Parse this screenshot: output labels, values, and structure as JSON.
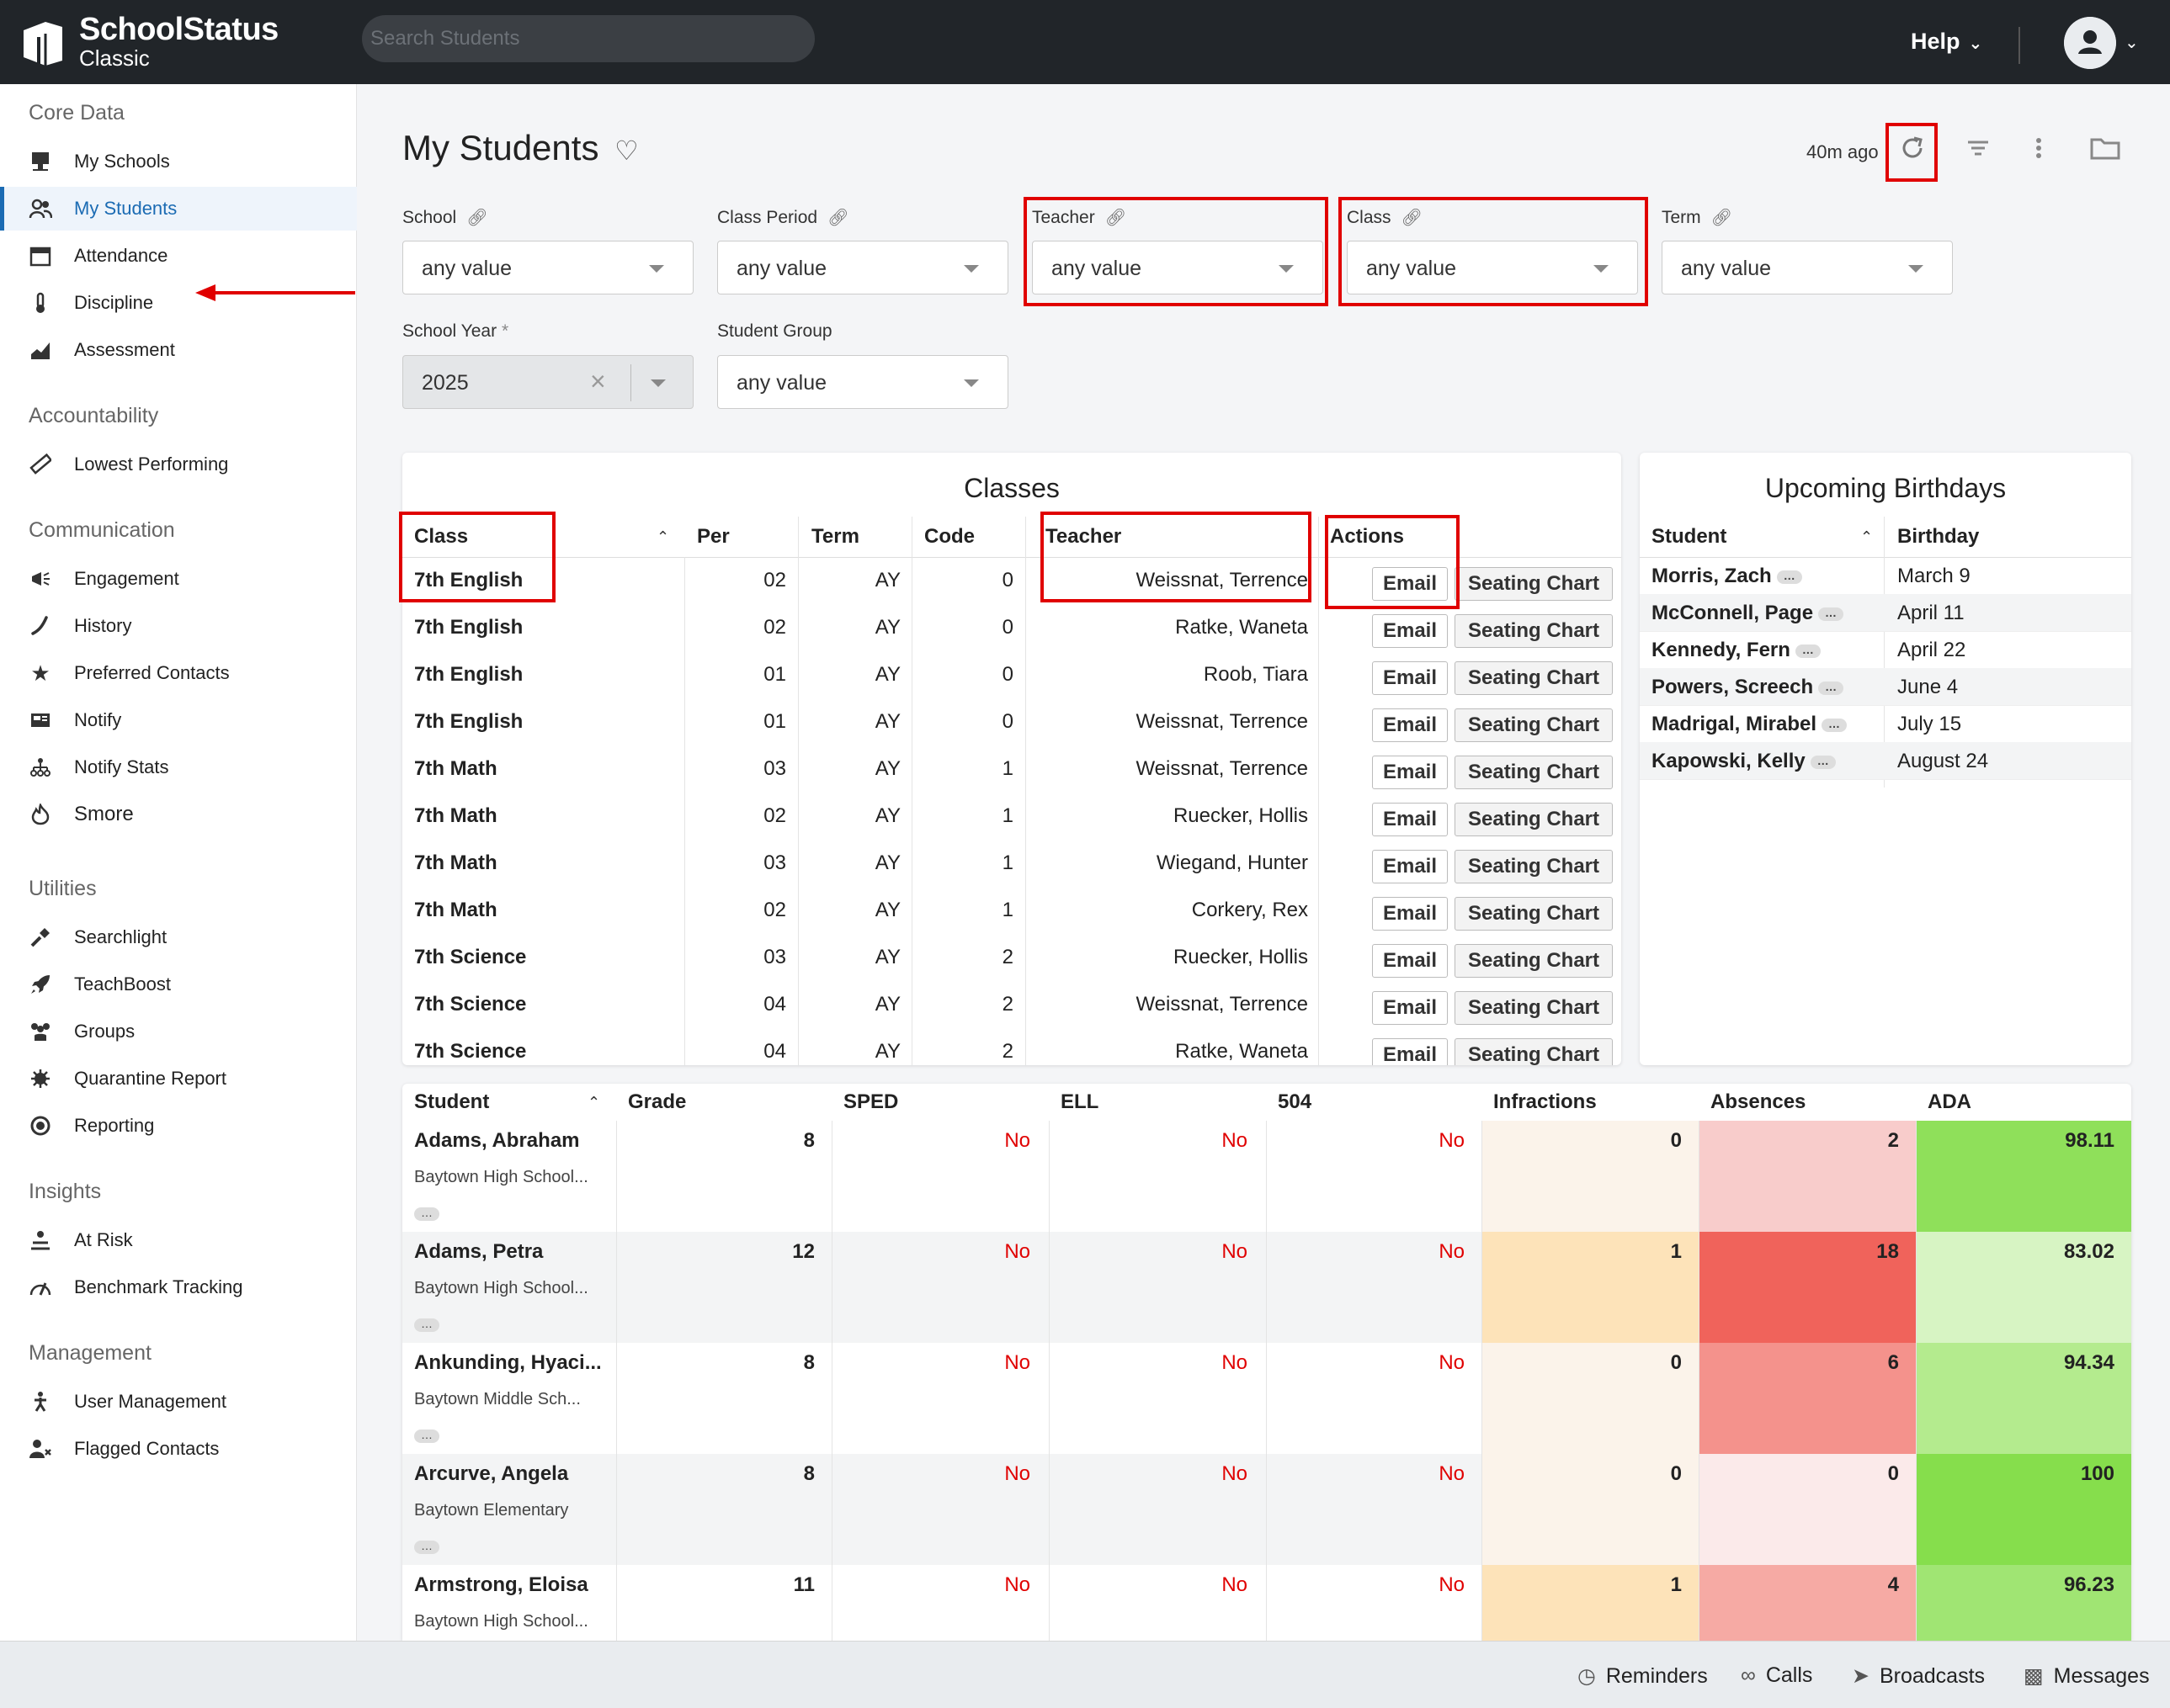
{
  "app": {
    "brand": "SchoolStatus",
    "brand_sub": "Classic",
    "search_placeholder": "Search Students",
    "help_label": "Help"
  },
  "sidebar": {
    "sections": [
      {
        "title": "Core Data",
        "items": [
          "My Schools",
          "My Students",
          "Attendance",
          "Discipline",
          "Assessment"
        ]
      },
      {
        "title": "Accountability",
        "items": [
          "Lowest Performing"
        ]
      },
      {
        "title": "Communication",
        "items": [
          "Engagement",
          "History",
          "Preferred Contacts",
          "Notify",
          "Notify Stats",
          "Smore"
        ]
      },
      {
        "title": "Utilities",
        "items": [
          "Searchlight",
          "TeachBoost",
          "Groups",
          "Quarantine Report",
          "Reporting"
        ]
      },
      {
        "title": "Insights",
        "items": [
          "At Risk",
          "Benchmark Tracking"
        ]
      },
      {
        "title": "Management",
        "items": [
          "User Management",
          "Flagged Contacts"
        ]
      }
    ],
    "active_item": "My Students"
  },
  "page": {
    "title": "My Students",
    "updated": "40m ago"
  },
  "filters": {
    "school": {
      "label": "School",
      "value": "any value"
    },
    "class_period": {
      "label": "Class Period",
      "value": "any value"
    },
    "teacher": {
      "label": "Teacher",
      "value": "any value"
    },
    "class": {
      "label": "Class",
      "value": "any value"
    },
    "term": {
      "label": "Term",
      "value": "any value"
    },
    "school_year": {
      "label": "School Year",
      "required": "*",
      "value": "2025"
    },
    "student_group": {
      "label": "Student Group",
      "value": "any value"
    }
  },
  "classes": {
    "title": "Classes",
    "headers": {
      "class": "Class",
      "per": "Per",
      "term": "Term",
      "code": "Code",
      "teacher": "Teacher",
      "actions": "Actions"
    },
    "email_label": "Email",
    "seating_label": "Seating Chart",
    "rows": [
      {
        "class": "7th English",
        "per": "02",
        "term": "AY",
        "code": "0",
        "teacher": "Weissnat, Terrence"
      },
      {
        "class": "7th English",
        "per": "02",
        "term": "AY",
        "code": "0",
        "teacher": "Ratke, Waneta"
      },
      {
        "class": "7th English",
        "per": "01",
        "term": "AY",
        "code": "0",
        "teacher": "Roob, Tiara"
      },
      {
        "class": "7th English",
        "per": "01",
        "term": "AY",
        "code": "0",
        "teacher": "Weissnat, Terrence"
      },
      {
        "class": "7th Math",
        "per": "03",
        "term": "AY",
        "code": "1",
        "teacher": "Weissnat, Terrence"
      },
      {
        "class": "7th Math",
        "per": "02",
        "term": "AY",
        "code": "1",
        "teacher": "Ruecker, Hollis"
      },
      {
        "class": "7th Math",
        "per": "03",
        "term": "AY",
        "code": "1",
        "teacher": "Wiegand, Hunter"
      },
      {
        "class": "7th Math",
        "per": "02",
        "term": "AY",
        "code": "1",
        "teacher": "Corkery, Rex"
      },
      {
        "class": "7th Science",
        "per": "03",
        "term": "AY",
        "code": "2",
        "teacher": "Ruecker, Hollis"
      },
      {
        "class": "7th Science",
        "per": "04",
        "term": "AY",
        "code": "2",
        "teacher": "Weissnat, Terrence"
      },
      {
        "class": "7th Science",
        "per": "04",
        "term": "AY",
        "code": "2",
        "teacher": "Ratke, Waneta"
      }
    ]
  },
  "birthdays": {
    "title": "Upcoming Birthdays",
    "headers": {
      "student": "Student",
      "birthday": "Birthday"
    },
    "rows": [
      {
        "student": "Morris, Zach",
        "birthday": "March 9"
      },
      {
        "student": "McConnell, Page",
        "birthday": "April 11"
      },
      {
        "student": "Kennedy, Fern",
        "birthday": "April 22"
      },
      {
        "student": "Powers, Screech",
        "birthday": "June 4"
      },
      {
        "student": "Madrigal, Mirabel",
        "birthday": "July 15"
      },
      {
        "student": "Kapowski, Kelly",
        "birthday": "August 24"
      }
    ]
  },
  "students": {
    "headers": {
      "student": "Student",
      "grade": "Grade",
      "sped": "SPED",
      "ell": "ELL",
      "s504": "504",
      "infractions": "Infractions",
      "absences": "Absences",
      "ada": "ADA"
    },
    "rows": [
      {
        "name": "Adams, Abraham",
        "school": "Baytown High School...",
        "grade": "8",
        "sped": "No",
        "ell": "No",
        "s504": "No",
        "infractions": "0",
        "absences": "2",
        "ada": "98.11",
        "inf_color": "#fbf3ea",
        "abs_color": "#f8cccb",
        "ada_color": "#8fe05a"
      },
      {
        "name": "Adams, Petra",
        "school": "Baytown High School...",
        "grade": "12",
        "sped": "No",
        "ell": "No",
        "s504": "No",
        "infractions": "1",
        "absences": "18",
        "ada": "83.02",
        "inf_color": "#fde3b9",
        "abs_color": "#f0635b",
        "ada_color": "#d7f4c3"
      },
      {
        "name": "Ankunding, Hyaci...",
        "school": "Baytown Middle Sch...",
        "grade": "8",
        "sped": "No",
        "ell": "No",
        "s504": "No",
        "infractions": "0",
        "absences": "6",
        "ada": "94.34",
        "inf_color": "#fbf3ea",
        "abs_color": "#f4928c",
        "ada_color": "#b4eb8e"
      },
      {
        "name": "Arcurve, Angela",
        "school": "Baytown Elementary",
        "grade": "8",
        "sped": "No",
        "ell": "No",
        "s504": "No",
        "infractions": "0",
        "absences": "0",
        "ada": "100",
        "inf_color": "#fbf3ea",
        "abs_color": "#fbeaea",
        "ada_color": "#86de4c"
      },
      {
        "name": "Armstrong, Eloisa",
        "school": "Baytown High School...",
        "grade": "11",
        "sped": "No",
        "ell": "No",
        "s504": "No",
        "infractions": "1",
        "absences": "4",
        "ada": "96.23",
        "inf_color": "#fde3b9",
        "abs_color": "#f6aaa4",
        "ada_color": "#a0e573"
      }
    ]
  },
  "bottombar": {
    "reminders": "Reminders",
    "calls": "Calls",
    "broadcasts": "Broadcasts",
    "messages": "Messages"
  }
}
